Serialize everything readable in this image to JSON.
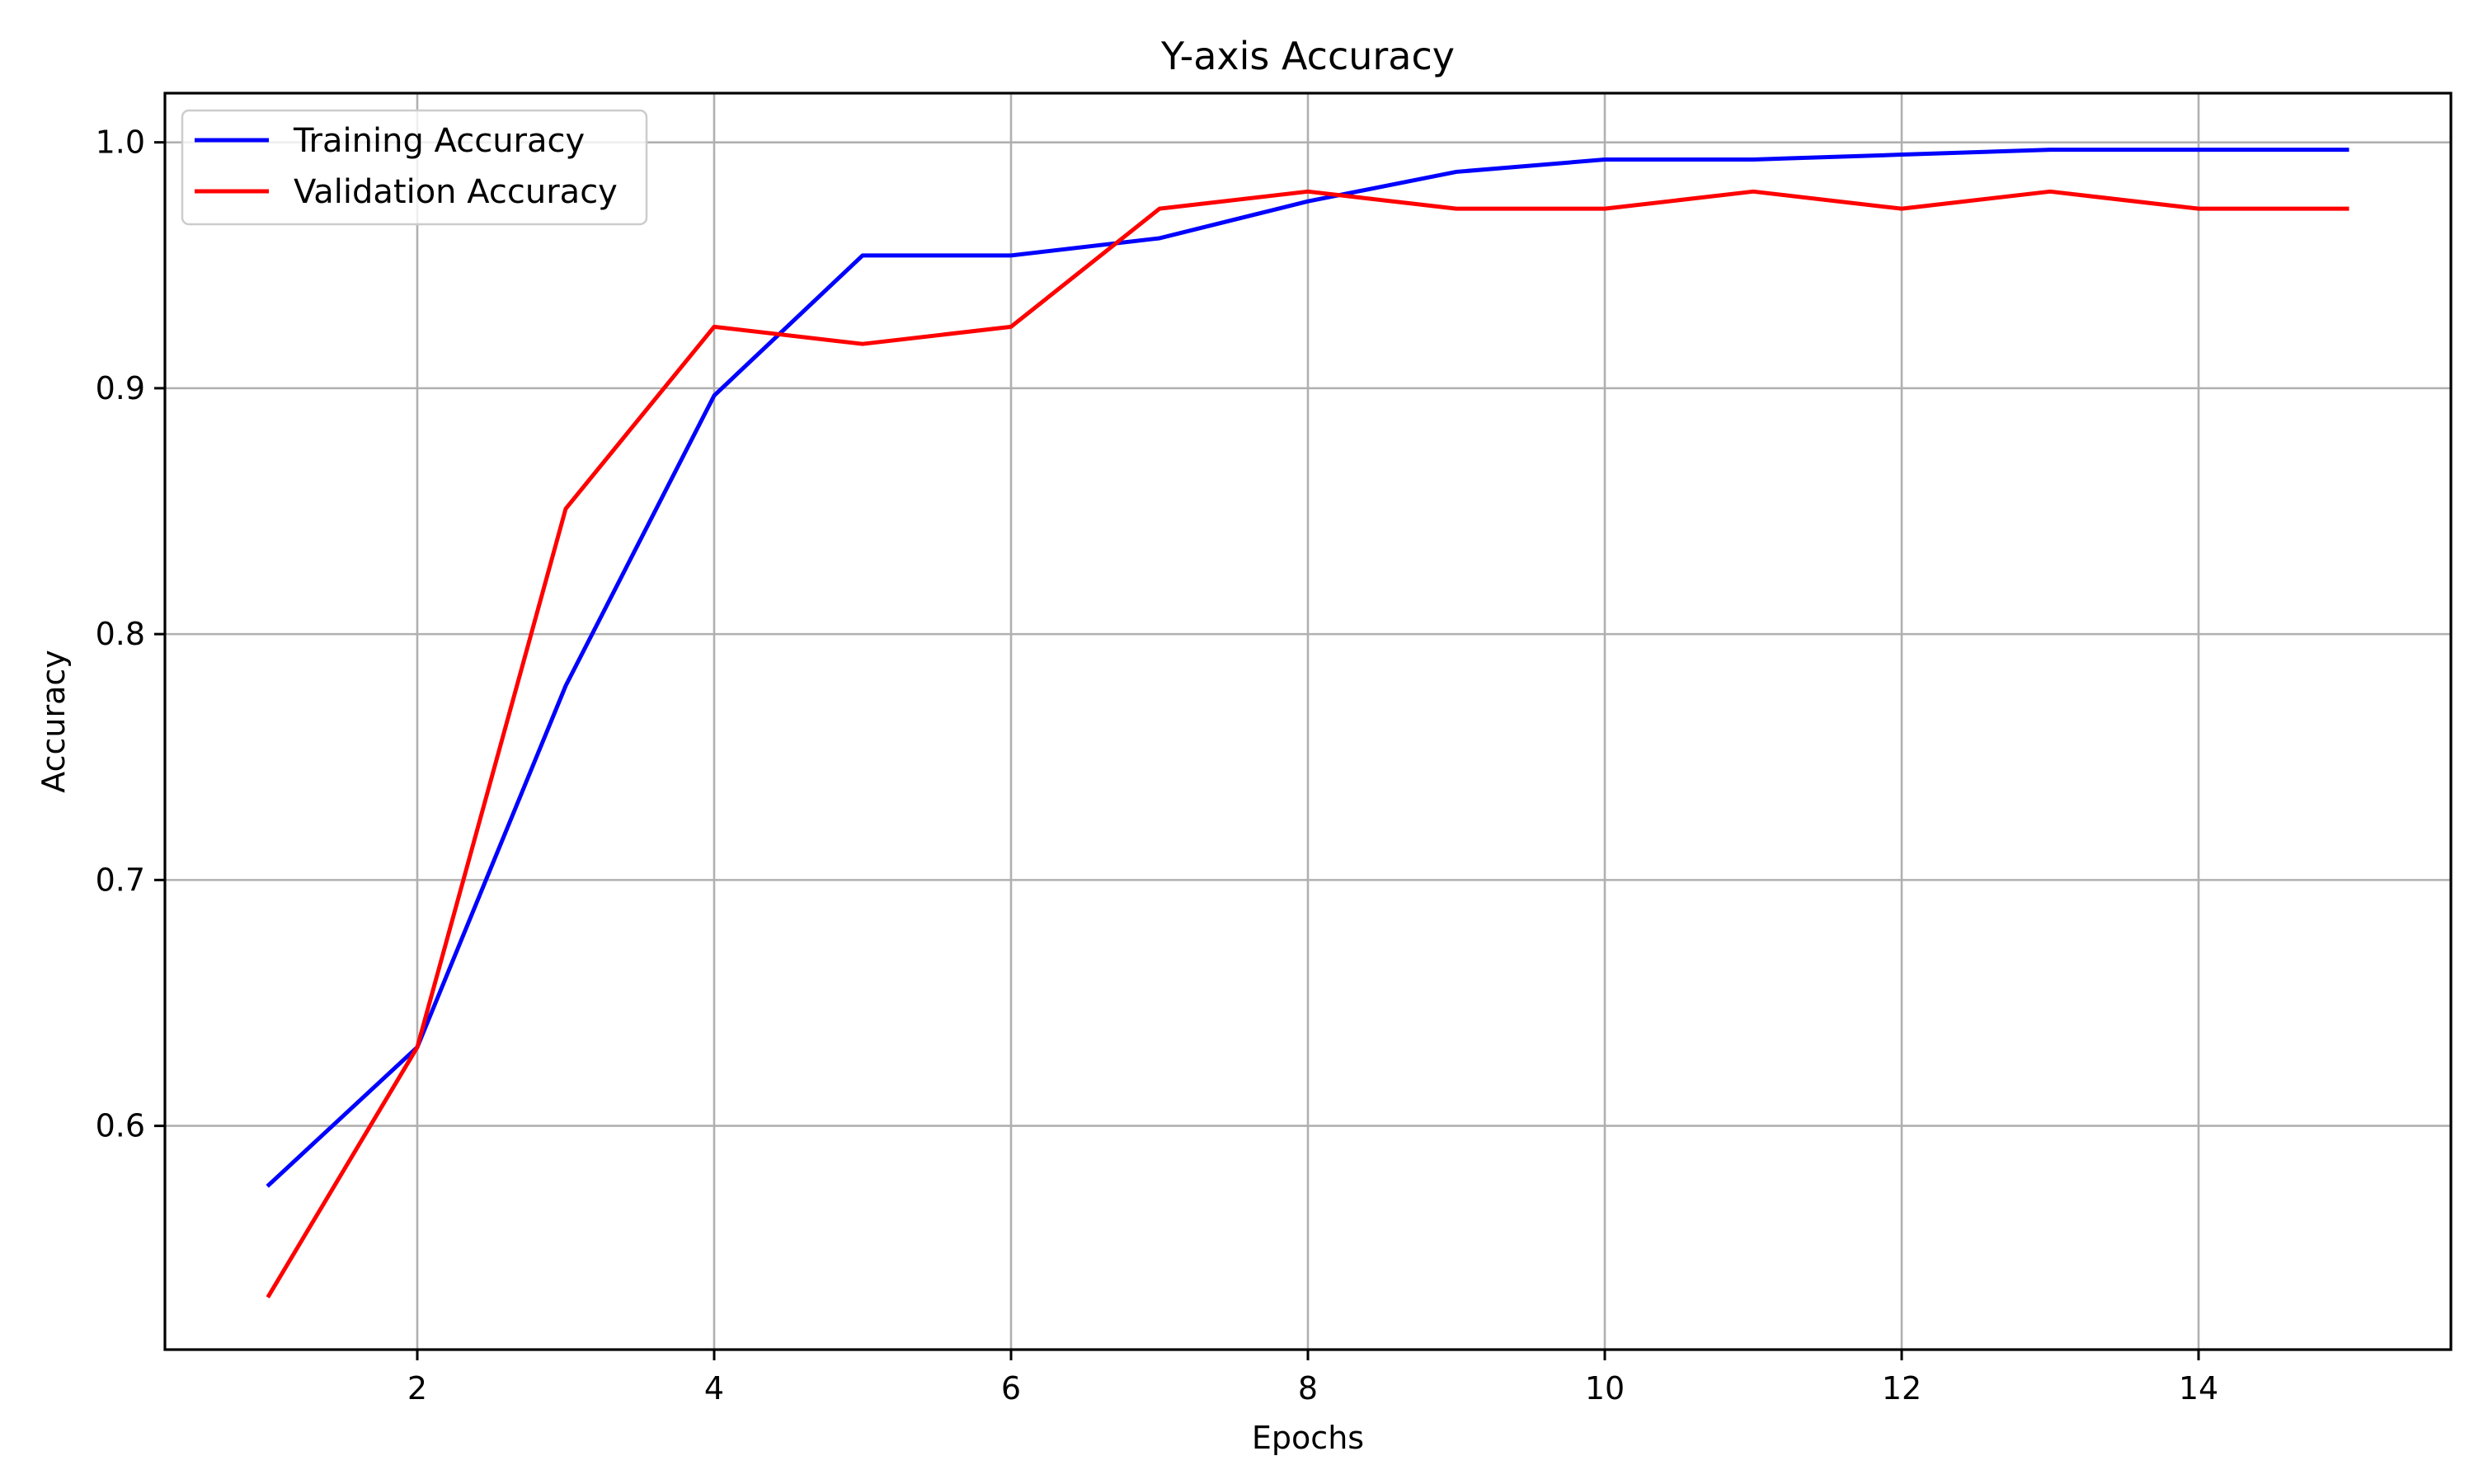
{
  "chart_data": {
    "type": "line",
    "title": "Y-axis Accuracy",
    "xlabel": "Epochs",
    "ylabel": "Accuracy",
    "xlim": [
      0.3,
      15.7
    ],
    "ylim": [
      0.509,
      1.02
    ],
    "xticks": [
      2,
      4,
      6,
      8,
      10,
      12,
      14
    ],
    "xtick_labels": [
      "2",
      "4",
      "6",
      "8",
      "10",
      "12",
      "14"
    ],
    "yticks": [
      0.6,
      0.7,
      0.8,
      0.9,
      1.0
    ],
    "ytick_labels": [
      "0.6",
      "0.7",
      "0.8",
      "0.9",
      "1.0"
    ],
    "grid": true,
    "legend_position": "top-left",
    "x": [
      1,
      2,
      3,
      4,
      5,
      6,
      7,
      8,
      9,
      10,
      11,
      12,
      13,
      14,
      15
    ],
    "series": [
      {
        "name": "Training Accuracy",
        "color": "#0000ff",
        "values": [
          0.576,
          0.632,
          0.779,
          0.897,
          0.954,
          0.954,
          0.961,
          0.976,
          0.988,
          0.993,
          0.993,
          0.995,
          0.997,
          0.997,
          0.997
        ]
      },
      {
        "name": "Validation Accuracy",
        "color": "#ff0000",
        "values": [
          0.531,
          0.632,
          0.851,
          0.925,
          0.918,
          0.925,
          0.973,
          0.98,
          0.973,
          0.973,
          0.98,
          0.973,
          0.98,
          0.973,
          0.973
        ]
      }
    ]
  }
}
